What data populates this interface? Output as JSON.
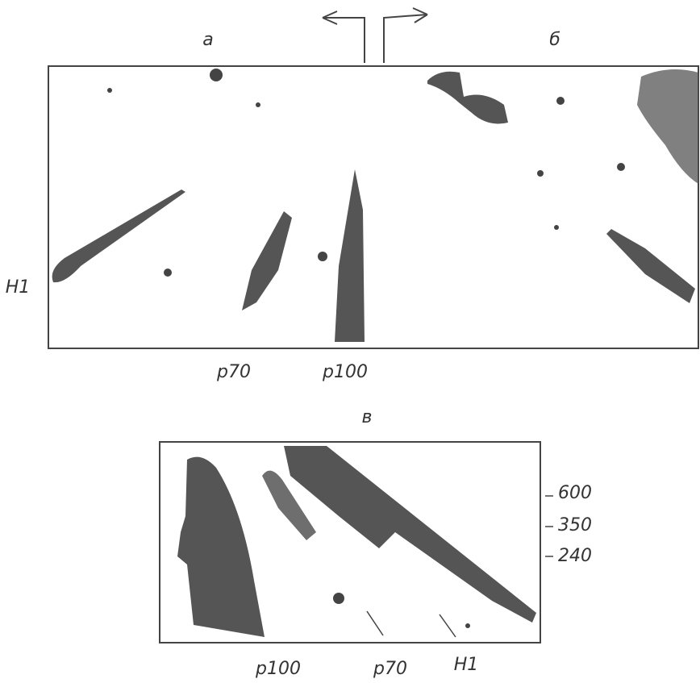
{
  "top_figure": {
    "panel_labels": [
      "а",
      "б"
    ],
    "row_label": "H1",
    "band_labels": [
      "p70",
      "p100"
    ]
  },
  "bottom_figure": {
    "panel_label": "в",
    "markers": [
      "600",
      "350",
      "240"
    ],
    "band_labels": [
      "p100",
      "p70",
      "H1"
    ]
  }
}
